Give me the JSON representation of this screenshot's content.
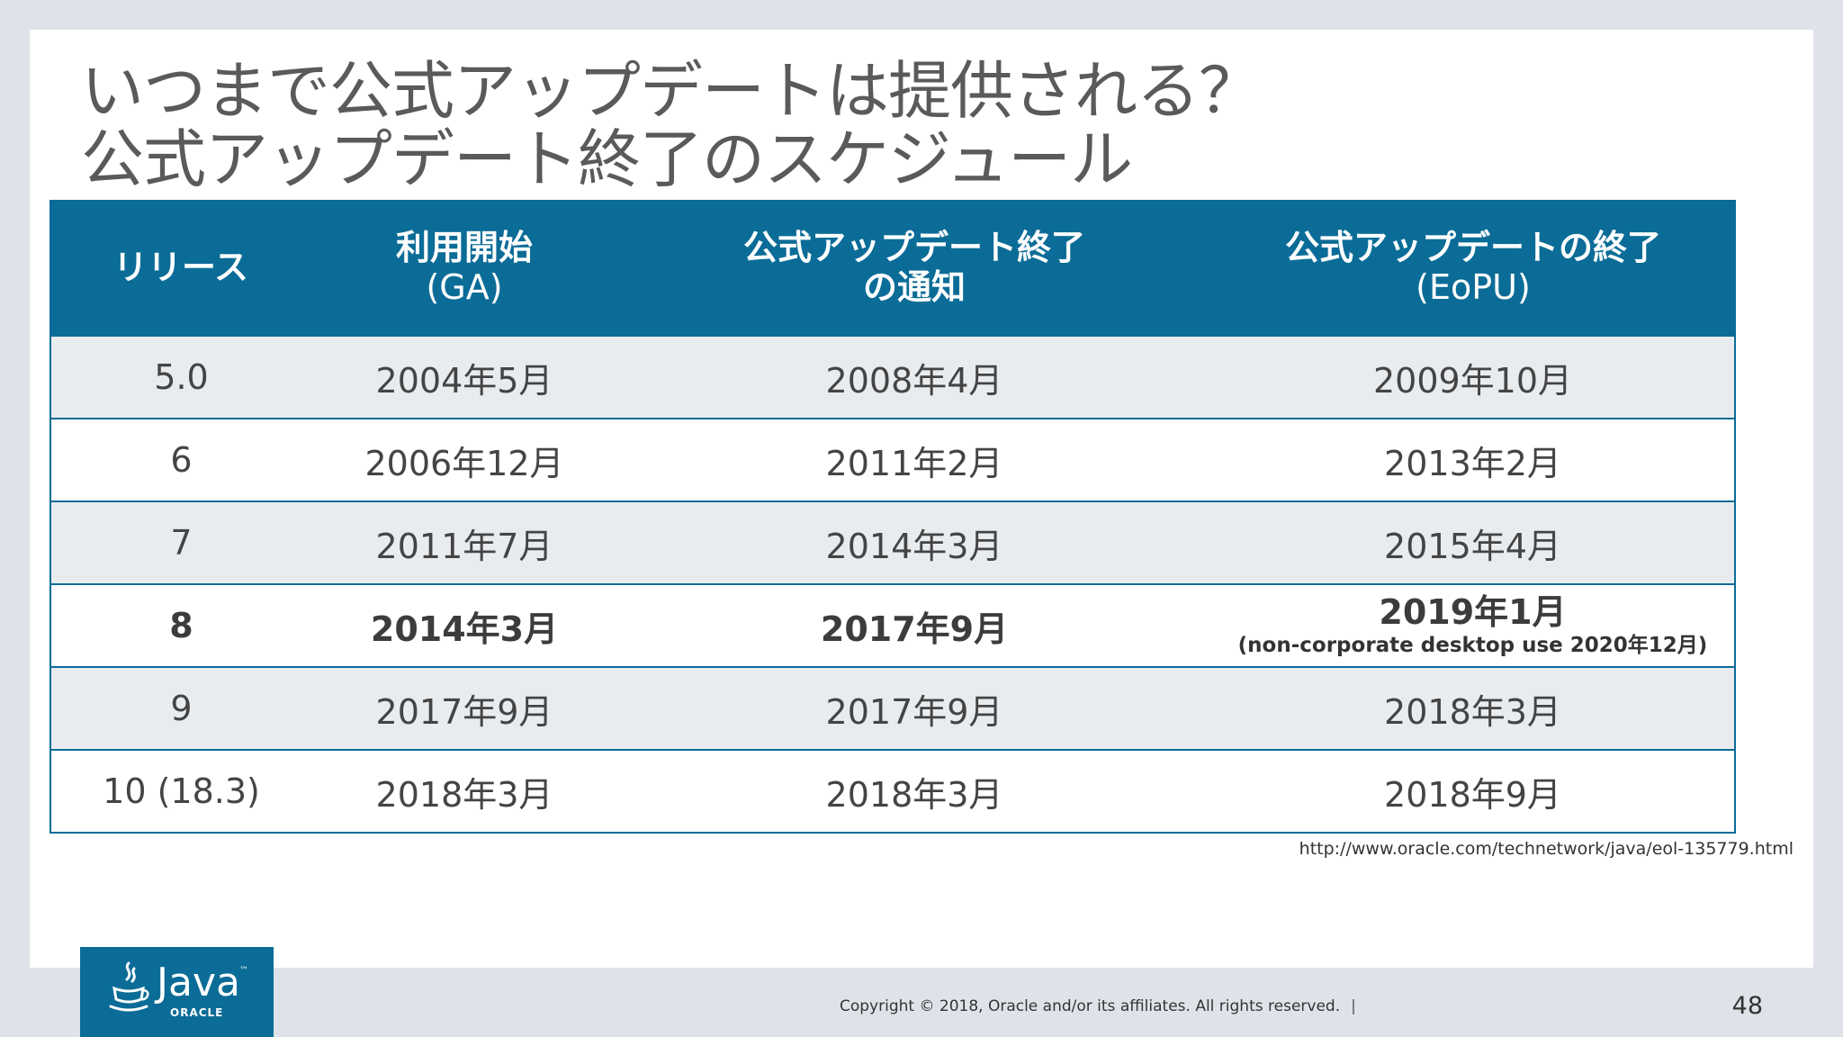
{
  "title": {
    "line1": "いつまで公式アップデートは提供される？",
    "line2": "公式アップデート終了のスケジュール"
  },
  "table": {
    "headers": [
      {
        "line1": "リリース",
        "line2": ""
      },
      {
        "line1": "利用開始",
        "line2": "(GA)"
      },
      {
        "line1": "公式アップデート終了",
        "line2": "の通知"
      },
      {
        "line1": "公式アップデートの終了",
        "line2": "(EoPU)"
      }
    ],
    "rows": [
      {
        "release": "5.0",
        "ga": "2004年5月",
        "notice": "2008年4月",
        "eopu": "2009年10月",
        "note": ""
      },
      {
        "release": "6",
        "ga": "2006年12月",
        "notice": "2011年2月",
        "eopu": "2013年2月",
        "note": ""
      },
      {
        "release": "7",
        "ga": "2011年7月",
        "notice": "2014年3月",
        "eopu": "2015年4月",
        "note": ""
      },
      {
        "release": "8",
        "ga": "2014年3月",
        "notice": "2017年9月",
        "eopu": "2019年1月",
        "note": "(non-corporate desktop use 2020年12月)"
      },
      {
        "release": "9",
        "ga": "2017年9月",
        "notice": "2017年9月",
        "eopu": "2018年3月",
        "note": ""
      },
      {
        "release": "10 (18.3)",
        "ga": "2018年3月",
        "notice": "2018年3月",
        "eopu": "2018年9月",
        "note": ""
      }
    ]
  },
  "source_url": "http://www.oracle.com/technetwork/java/eol-135779.html",
  "logo": {
    "java_text": "Java",
    "tm": "™",
    "oracle_text": "ORACLE",
    "icon": "java-cup-icon"
  },
  "footer": {
    "copyright": "Copyright © 2018, Oracle and/or its affiliates. All rights reserved.",
    "separator": "|",
    "page_number": "48"
  },
  "colors": {
    "header_bg": "#0b6c97",
    "row_shade": "#e9ecef",
    "page_bg": "#dfe3e9"
  }
}
